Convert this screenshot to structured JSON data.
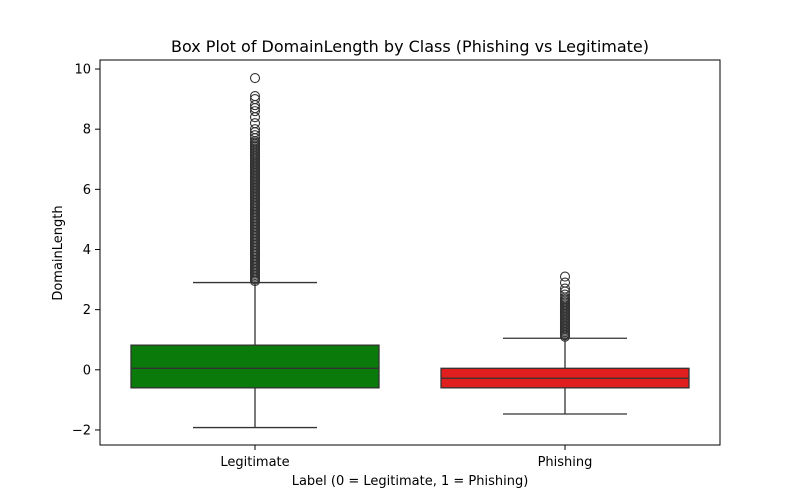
{
  "chart_data": {
    "type": "box",
    "title": "Box Plot of DomainLength by Class (Phishing vs Legitimate)",
    "xlabel": "Label (0 = Legitimate, 1 = Phishing)",
    "ylabel": "DomainLength",
    "categories": [
      "Legitimate",
      "Phishing"
    ],
    "ylim": [
      -2.5,
      10.3
    ],
    "yticks": [
      -2,
      0,
      2,
      4,
      6,
      8,
      10
    ],
    "ytick_labels": [
      "−2",
      "0",
      "2",
      "4",
      "6",
      "8",
      "10"
    ],
    "grid": false,
    "boxes": [
      {
        "category": "Legitimate",
        "color": "#0a7a0a",
        "whisker_low": -1.92,
        "q1": -0.6,
        "median": 0.05,
        "q3": 0.82,
        "whisker_high": 2.9,
        "outliers": [
          2.95,
          3.0,
          3.05,
          3.1,
          3.15,
          3.2,
          3.25,
          3.3,
          3.35,
          3.4,
          3.45,
          3.5,
          3.55,
          3.6,
          3.65,
          3.7,
          3.75,
          3.8,
          3.85,
          3.9,
          3.95,
          4.0,
          4.05,
          4.1,
          4.15,
          4.2,
          4.25,
          4.3,
          4.35,
          4.4,
          4.45,
          4.5,
          4.55,
          4.6,
          4.65,
          4.7,
          4.75,
          4.8,
          4.85,
          4.9,
          4.95,
          5.0,
          5.05,
          5.1,
          5.15,
          5.2,
          5.25,
          5.3,
          5.35,
          5.4,
          5.45,
          5.5,
          5.55,
          5.6,
          5.65,
          5.7,
          5.75,
          5.8,
          5.85,
          5.9,
          5.95,
          6.0,
          6.05,
          6.1,
          6.15,
          6.2,
          6.25,
          6.3,
          6.35,
          6.4,
          6.45,
          6.5,
          6.55,
          6.6,
          6.65,
          6.7,
          6.75,
          6.8,
          6.85,
          6.9,
          6.95,
          7.0,
          7.05,
          7.1,
          7.15,
          7.2,
          7.25,
          7.3,
          7.35,
          7.4,
          7.45,
          7.5,
          7.55,
          7.6,
          7.7,
          7.8,
          7.9,
          8.0,
          8.2,
          8.4,
          8.6,
          8.7,
          8.8,
          9.0,
          9.1,
          9.7
        ]
      },
      {
        "category": "Phishing",
        "color": "#e01e1e",
        "whisker_low": -1.47,
        "q1": -0.6,
        "median": -0.28,
        "q3": 0.05,
        "whisker_high": 1.05,
        "outliers": [
          1.1,
          1.15,
          1.2,
          1.25,
          1.3,
          1.35,
          1.4,
          1.45,
          1.5,
          1.55,
          1.6,
          1.65,
          1.7,
          1.75,
          1.8,
          1.85,
          1.9,
          1.95,
          2.0,
          2.05,
          2.1,
          2.15,
          2.2,
          2.25,
          2.3,
          2.35,
          2.4,
          2.5,
          2.6,
          2.7,
          2.9,
          3.1
        ]
      }
    ]
  }
}
